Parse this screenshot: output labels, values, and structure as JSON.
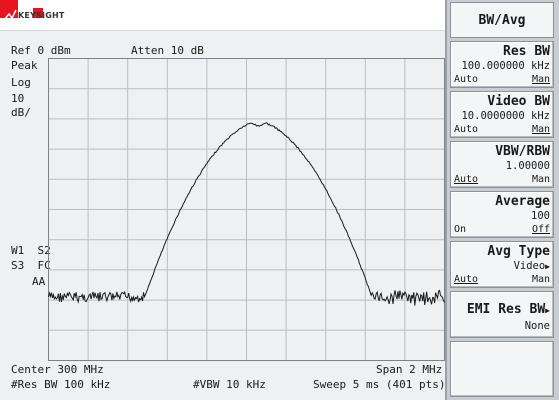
{
  "logo": {
    "text": "KEYSIGHT"
  },
  "header": {
    "ref_level": "Ref 0 dBm",
    "attenuation": "Atten 10 dB"
  },
  "left_annotations": {
    "detector": "Peak",
    "scale_type": "Log",
    "scale_value": "10",
    "scale_unit": "dB/",
    "trace_line1": "W1  S2",
    "trace_line2": "S3  FC",
    "trace_line3": "AA"
  },
  "footer": {
    "center": "Center 300 MHz",
    "span": "Span 2 MHz",
    "res_bw": "#Res BW 100 kHz",
    "vbw": "#VBW 10 kHz",
    "sweep": "Sweep 5 ms (401 pts)"
  },
  "menu": {
    "title": "BW/Avg",
    "keys": [
      {
        "title": "Res BW",
        "value": "100.000000 kHz",
        "left": "Auto",
        "right": "Man",
        "selected": "right"
      },
      {
        "title": "Video BW",
        "value": "10.0000000 kHz",
        "left": "Auto",
        "right": "Man",
        "selected": "right"
      },
      {
        "title": "VBW/RBW",
        "value": "1.00000",
        "left": "Auto",
        "right": "Man",
        "selected": "left"
      },
      {
        "title": "Average",
        "value": "100",
        "left": "On",
        "right": "Off",
        "selected": "right"
      },
      {
        "title": "Avg Type",
        "value": "Video",
        "left": "Auto",
        "right": "Man",
        "selected": "left"
      },
      {
        "title": "EMI Res BW",
        "value": "None",
        "left": "",
        "right": "",
        "selected": ""
      },
      {
        "title": "",
        "value": "",
        "left": "",
        "right": "",
        "selected": ""
      }
    ]
  },
  "colors": {
    "trace": "#1a1a1a",
    "grid": "#b9bec3",
    "logo_red": "#e8141e"
  }
}
